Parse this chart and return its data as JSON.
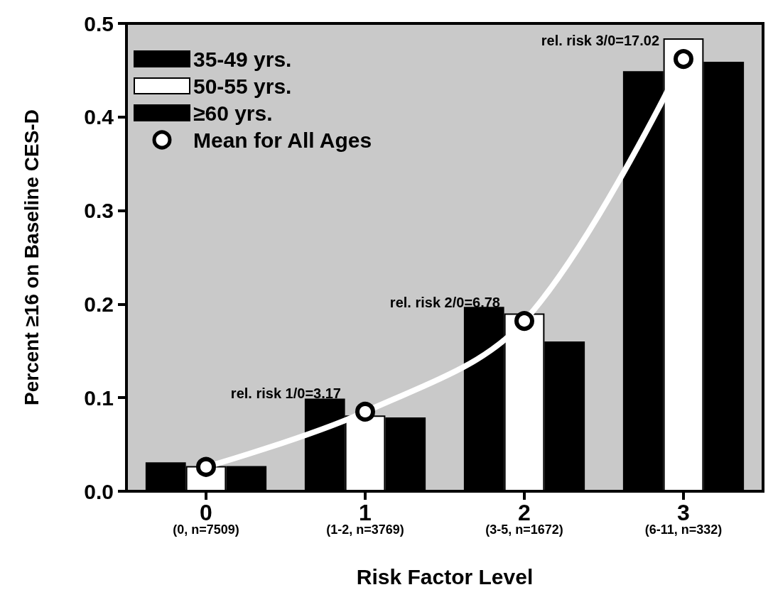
{
  "chart_data": {
    "type": "bar",
    "xlabel": "Risk Factor Level",
    "ylabel": "Percent ≥16 on Baseline CES-D",
    "categories": [
      "0\n(0, n=7509)",
      "1\n(1-2, n=3769)",
      "2\n(3-5, n=1672)",
      "3\n(6-11, n=332)"
    ],
    "series": [
      {
        "name": "35-49 yrs.",
        "color": "#000000",
        "values": [
          0.031,
          0.099,
          0.197,
          0.449
        ]
      },
      {
        "name": "50-55 yrs.",
        "color": "#ffffff",
        "values": [
          0.027,
          0.081,
          0.19,
          0.484
        ]
      },
      {
        "name": "≥60 yrs.",
        "color": "#000000",
        "values": [
          0.027,
          0.079,
          0.16,
          0.459
        ]
      },
      {
        "name": "Mean for All Ages",
        "type": "line",
        "color": "#ffffff",
        "marker": "circle",
        "values": [
          0.026,
          0.085,
          0.182,
          0.462
        ]
      }
    ],
    "ylim": [
      0,
      0.5
    ],
    "yticks": [
      {
        "value": 0,
        "label": "0.0"
      },
      0.1,
      0.2,
      0.3,
      0.4,
      0.5
    ],
    "annotations": [
      {
        "text": "rel. risk 1/0=3.17",
        "x": "1\n(1-2, n=3769)",
        "y": 0.085
      },
      {
        "text": "rel. risk 2/0=6.78",
        "x": "2\n(3-5, n=1672)",
        "y": 0.182
      },
      {
        "text": "rel. risk 3/0=17.02",
        "x": "3\n(6-11, n=332)",
        "y": 0.462
      }
    ],
    "grid": false,
    "legend": "top left"
  }
}
